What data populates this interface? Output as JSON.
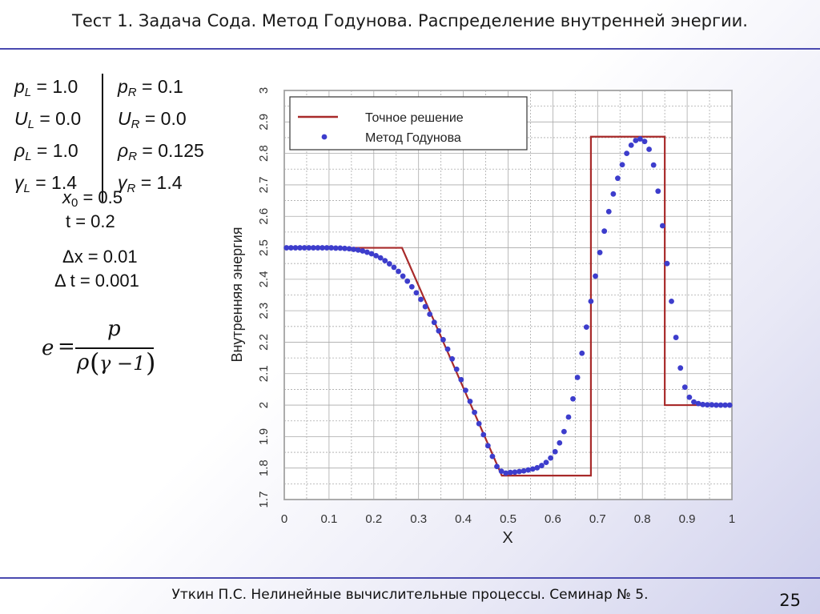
{
  "slide": {
    "title": "Тест 1. Задача Сода. Метод Годунова. Распределение внутренней энергии.",
    "footer": "Уткин П.С. Нелинейные вычислительные процессы. Семинар № 5.",
    "page_number": "25",
    "accent_color": "#4a4ab0"
  },
  "params": {
    "left": [
      {
        "sym": "p",
        "sub": "L",
        "val": " = 1.0"
      },
      {
        "sym": "U",
        "sub": "L",
        "val": " = 0.0"
      },
      {
        "sym": "ρ",
        "sub": "L",
        "val": " = 1.0"
      },
      {
        "sym": "γ",
        "sub": "L",
        "val": " = 1.4"
      }
    ],
    "right": [
      {
        "sym": "p",
        "sub": "R",
        "val": " = 0.1"
      },
      {
        "sym": "U",
        "sub": "R",
        "val": " = 0.0"
      },
      {
        "sym": "ρ",
        "sub": "R",
        "val": " = 0.125"
      },
      {
        "sym": "γ",
        "sub": "R",
        "val": " = 1.4"
      }
    ],
    "x0": {
      "sym": "x",
      "sub": "0",
      "val": " = 0.5"
    },
    "t": "t = 0.2",
    "dx": "Δx = 0.01",
    "dt": "Δ t = 0.001"
  },
  "formula": {
    "lhs": "e",
    "eq": "=",
    "num": "p",
    "den_rho": "ρ",
    "den_inner": "γ −1"
  },
  "chart_data": {
    "type": "line",
    "xlabel": "X",
    "ylabel": "Внутренняя энергия",
    "xlim": [
      0,
      1
    ],
    "ylim": [
      1.7,
      3.0
    ],
    "x_ticks": [
      "0",
      "0.1",
      "0.2",
      "0.3",
      "0.4",
      "0.5",
      "0.6",
      "0.7",
      "0.8",
      "0.9",
      "1"
    ],
    "y_ticks": [
      "1.7",
      "1.8",
      "1.9",
      "2",
      "2.1",
      "2.2",
      "2.3",
      "2.4",
      "2.5",
      "2.6",
      "2.7",
      "2.8",
      "2.9",
      "3"
    ],
    "grid": true,
    "legend_position": "top-left",
    "series": [
      {
        "name": "Точное решение",
        "style": "line",
        "color": "#a82a2a",
        "x": [
          0,
          0.263,
          0.486,
          0.685,
          0.685,
          0.85,
          0.85,
          1.0
        ],
        "y": [
          2.5,
          2.5,
          1.776,
          1.776,
          2.853,
          2.853,
          2.0,
          2.0
        ]
      },
      {
        "name": "Метод Годунова",
        "style": "markers",
        "color": "#3d3dcc",
        "x": [
          0.005,
          0.015,
          0.025,
          0.035,
          0.045,
          0.055,
          0.065,
          0.075,
          0.085,
          0.095,
          0.105,
          0.115,
          0.125,
          0.135,
          0.145,
          0.155,
          0.165,
          0.175,
          0.185,
          0.195,
          0.205,
          0.215,
          0.225,
          0.235,
          0.245,
          0.255,
          0.265,
          0.275,
          0.285,
          0.295,
          0.305,
          0.315,
          0.325,
          0.335,
          0.345,
          0.355,
          0.365,
          0.375,
          0.385,
          0.395,
          0.405,
          0.415,
          0.425,
          0.435,
          0.445,
          0.455,
          0.465,
          0.475,
          0.485,
          0.495,
          0.505,
          0.515,
          0.525,
          0.535,
          0.545,
          0.555,
          0.565,
          0.575,
          0.585,
          0.595,
          0.605,
          0.615,
          0.625,
          0.635,
          0.645,
          0.655,
          0.665,
          0.675,
          0.685,
          0.695,
          0.705,
          0.715,
          0.725,
          0.735,
          0.745,
          0.755,
          0.765,
          0.775,
          0.785,
          0.795,
          0.805,
          0.815,
          0.825,
          0.835,
          0.845,
          0.855,
          0.865,
          0.875,
          0.885,
          0.895,
          0.905,
          0.915,
          0.925,
          0.935,
          0.945,
          0.955,
          0.965,
          0.975,
          0.985,
          0.995
        ],
        "y": [
          2.5,
          2.5,
          2.5,
          2.5,
          2.5,
          2.5,
          2.5,
          2.5,
          2.5,
          2.5,
          2.5,
          2.499,
          2.499,
          2.498,
          2.497,
          2.495,
          2.493,
          2.49,
          2.486,
          2.481,
          2.475,
          2.468,
          2.459,
          2.449,
          2.438,
          2.425,
          2.41,
          2.394,
          2.376,
          2.357,
          2.336,
          2.313,
          2.289,
          2.263,
          2.236,
          2.208,
          2.178,
          2.147,
          2.114,
          2.081,
          2.047,
          2.012,
          1.977,
          1.941,
          1.906,
          1.871,
          1.837,
          1.805,
          1.79,
          1.784,
          1.786,
          1.787,
          1.789,
          1.791,
          1.794,
          1.797,
          1.801,
          1.808,
          1.818,
          1.832,
          1.852,
          1.88,
          1.916,
          1.962,
          2.02,
          2.088,
          2.165,
          2.248,
          2.33,
          2.41,
          2.485,
          2.553,
          2.615,
          2.671,
          2.721,
          2.764,
          2.8,
          2.826,
          2.841,
          2.846,
          2.838,
          2.813,
          2.763,
          2.68,
          2.57,
          2.45,
          2.33,
          2.215,
          2.118,
          2.057,
          2.025,
          2.01,
          2.005,
          2.002,
          2.001,
          2.001,
          2.0,
          2.0,
          2.0,
          2.0
        ]
      }
    ]
  }
}
